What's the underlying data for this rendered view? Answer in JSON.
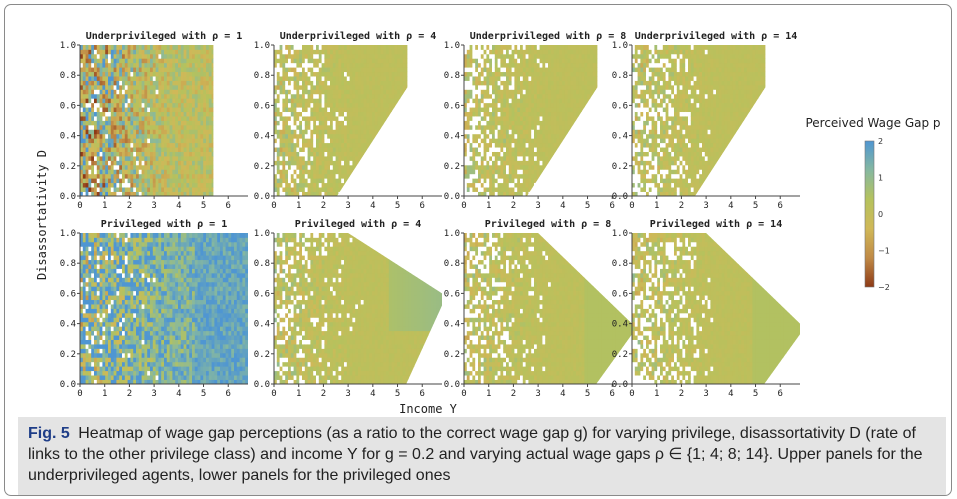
{
  "chart_data": {
    "type": "heatmap",
    "panels": [
      {
        "group": "underprivileged",
        "title": "Underprivileged with ρ = 1",
        "rho": 1
      },
      {
        "group": "underprivileged",
        "title": "Underprivileged with ρ = 4",
        "rho": 4
      },
      {
        "group": "underprivileged",
        "title": "Underprivileged with ρ = 8",
        "rho": 8
      },
      {
        "group": "underprivileged",
        "title": "Underprivileged with ρ = 14",
        "rho": 14
      },
      {
        "group": "privileged",
        "title": "Privileged with ρ = 1",
        "rho": 1
      },
      {
        "group": "privileged",
        "title": "Privileged with ρ = 4",
        "rho": 4
      },
      {
        "group": "privileged",
        "title": "Privileged with ρ = 8",
        "rho": 8
      },
      {
        "group": "privileged",
        "title": "Privileged with ρ = 14",
        "rho": 14
      }
    ],
    "xlabel": "Income Y",
    "ylabel": "Disassortativity D",
    "xlim": [
      0,
      6.8
    ],
    "ylim": [
      0,
      1.0
    ],
    "xticks": [
      "0",
      "1",
      "2",
      "3",
      "4",
      "5",
      "6"
    ],
    "yticks": [
      "0.0",
      "0.2",
      "0.4",
      "0.6",
      "0.8",
      "1.0"
    ],
    "colorbar": {
      "title": "Perceived Wage Gap p",
      "min": -2,
      "max": 2,
      "ticks": [
        "2",
        "1",
        "0",
        "−1",
        "−2"
      ],
      "colors": [
        "#4f96d2",
        "#86b8a0",
        "#b5c25d",
        "#d0b858",
        "#c08a46",
        "#8e3a16"
      ]
    }
  },
  "caption": {
    "label": "Fig. 5",
    "text": "Heatmap of wage gap perceptions (as a ratio to the correct wage gap g) for varying privilege, disassortativity D (rate of links to the other privilege class) and income Y for g = 0.2 and varying actual wage gaps ρ ∈ {1; 4; 8; 14}. Upper panels for the underprivileged agents, lower panels for the privileged ones"
  }
}
